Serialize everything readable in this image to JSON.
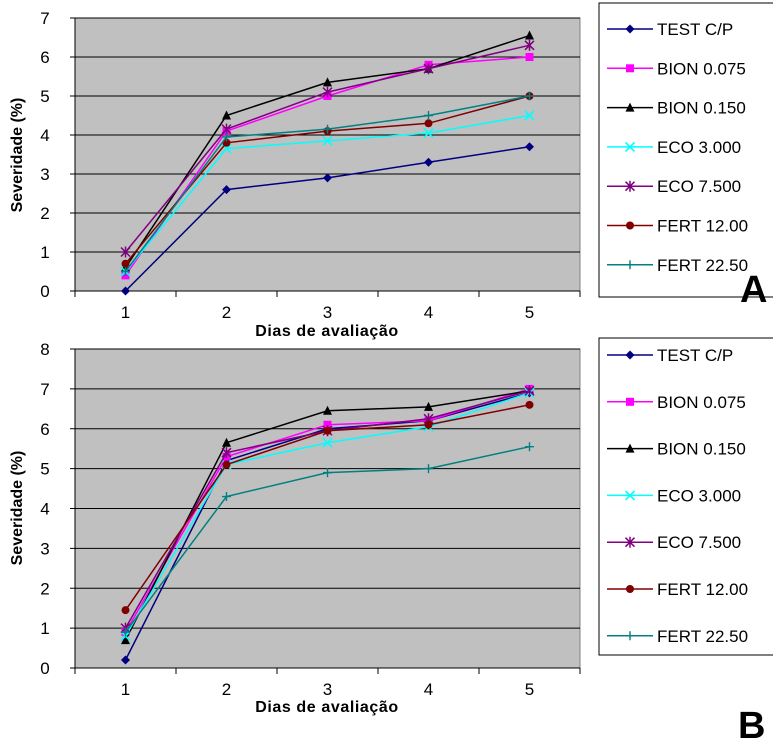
{
  "chart_data": [
    {
      "type": "line",
      "title": "",
      "panel_label": "A",
      "xlabel": "Dias de avaliação",
      "ylabel": "Severidade (%)",
      "x": [
        1,
        2,
        3,
        4,
        5
      ],
      "ylim": [
        0,
        7
      ],
      "yticks": [
        0,
        1,
        2,
        3,
        4,
        5,
        6,
        7
      ],
      "grid": "horizontal",
      "legend_position": "right",
      "series": [
        {
          "name": "TEST C/P",
          "color": "#000080",
          "marker": "diamond",
          "values": [
            0.0,
            2.6,
            2.9,
            3.3,
            3.7
          ]
        },
        {
          "name": "BION 0.075",
          "color": "#FF00FF",
          "marker": "square",
          "values": [
            0.4,
            4.1,
            5.0,
            5.8,
            6.0
          ]
        },
        {
          "name": "BION 0.150",
          "color": "#000000",
          "marker": "triangle",
          "values": [
            0.6,
            4.5,
            5.35,
            5.7,
            6.55
          ]
        },
        {
          "name": "ECO 3.000",
          "color": "#00FFFF",
          "marker": "x",
          "values": [
            0.5,
            3.65,
            3.85,
            4.05,
            4.5
          ]
        },
        {
          "name": "ECO 7.500",
          "color": "#800080",
          "marker": "star",
          "values": [
            1.0,
            4.15,
            5.1,
            5.7,
            6.3
          ]
        },
        {
          "name": "FERT 12.00",
          "color": "#800000",
          "marker": "circle",
          "values": [
            0.7,
            3.8,
            4.1,
            4.3,
            5.0
          ]
        },
        {
          "name": "FERT 22.50",
          "color": "#008080",
          "marker": "plus",
          "values": [
            0.5,
            3.95,
            4.15,
            4.5,
            5.0
          ]
        }
      ]
    },
    {
      "type": "line",
      "title": "",
      "panel_label": "B",
      "xlabel": "Dias de avaliação",
      "ylabel": "Severidade (%)",
      "x": [
        1,
        2,
        3,
        4,
        5
      ],
      "ylim": [
        0,
        8
      ],
      "yticks": [
        0,
        1,
        2,
        3,
        4,
        5,
        6,
        7,
        8
      ],
      "grid": "horizontal",
      "legend_position": "right",
      "series": [
        {
          "name": "TEST C/P",
          "color": "#000080",
          "marker": "diamond",
          "values": [
            0.2,
            5.2,
            6.0,
            6.2,
            6.9
          ]
        },
        {
          "name": "BION 0.075",
          "color": "#FF00FF",
          "marker": "square",
          "values": [
            0.9,
            5.3,
            6.1,
            6.2,
            7.0
          ]
        },
        {
          "name": "BION 0.150",
          "color": "#000000",
          "marker": "triangle",
          "values": [
            0.7,
            5.65,
            6.45,
            6.55,
            6.95
          ]
        },
        {
          "name": "ECO 3.000",
          "color": "#00FFFF",
          "marker": "x",
          "values": [
            0.8,
            5.1,
            5.65,
            6.05,
            6.9
          ]
        },
        {
          "name": "ECO 7.500",
          "color": "#800080",
          "marker": "star",
          "values": [
            1.0,
            5.4,
            5.95,
            6.25,
            6.95
          ]
        },
        {
          "name": "FERT 12.00",
          "color": "#800000",
          "marker": "circle",
          "values": [
            1.45,
            5.1,
            5.95,
            6.1,
            6.6
          ]
        },
        {
          "name": "FERT 22.50",
          "color": "#008080",
          "marker": "plus",
          "values": [
            0.9,
            4.3,
            4.9,
            5.0,
            5.55
          ]
        }
      ]
    }
  ]
}
